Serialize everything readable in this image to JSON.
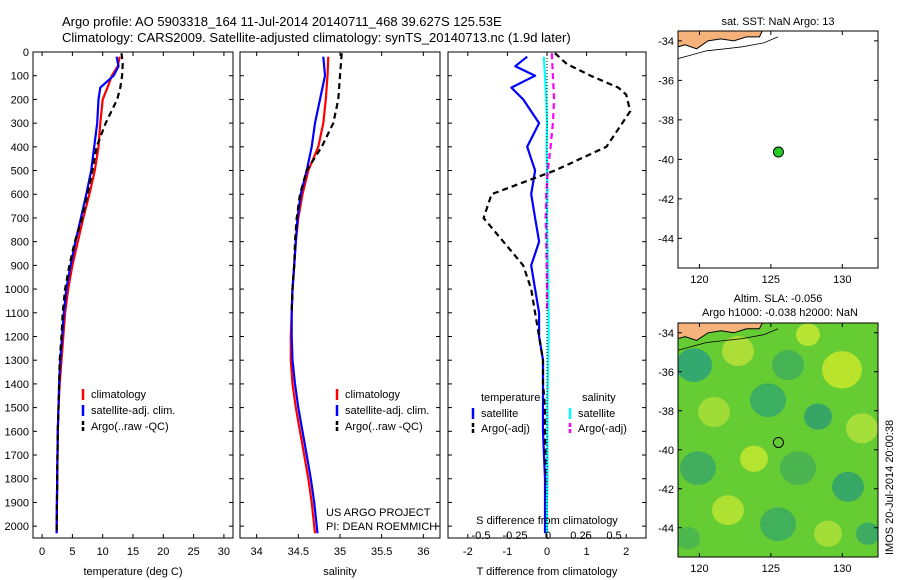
{
  "header": {
    "line1": "Argo profile: AO 5903318_164 11-Jul-2014 20140711_468 39.627S 125.53E",
    "line2": "Climatology: CARS2009. Satellite-adjusted climatology: synTS_20140713.nc (1.9d later)"
  },
  "side_label": "IMOS 20-Jul-2014 20:00:38",
  "colors": {
    "climatology": "#ff0000",
    "satellite": "#0000ff",
    "argo": "#000000",
    "sat_sal": "#00ffff",
    "argo_sal": "#ff00ff",
    "land": "#f5b27a",
    "float_dot": "#22cc22"
  },
  "chart_data": [
    {
      "type": "line",
      "xlabel": "temperature (deg C)",
      "xlim": [
        -1.5,
        31.5
      ],
      "xticks": [
        0,
        5,
        10,
        15,
        20,
        25,
        30
      ],
      "ylim": [
        2050,
        0
      ],
      "yticks": [
        0,
        100,
        200,
        300,
        400,
        500,
        600,
        700,
        800,
        900,
        1000,
        1100,
        1200,
        1300,
        1400,
        1500,
        1600,
        1700,
        1800,
        1900,
        2000
      ],
      "legend": [
        "climatology",
        "satellite-adj. clim.",
        "Argo(..raw -QC)"
      ],
      "series": [
        {
          "name": "climatology",
          "color": "#ff0000",
          "dash": "",
          "x": [
            12.8,
            12.5,
            11.5,
            10.8,
            10.0,
            9.6,
            9.3,
            8.7,
            7.8,
            6.8,
            5.9,
            5.0,
            4.3,
            3.8,
            3.5,
            3.2,
            2.9,
            2.7,
            2.6,
            2.5,
            2.4
          ],
          "y": [
            20,
            60,
            100,
            150,
            200,
            300,
            400,
            500,
            600,
            700,
            800,
            900,
            1000,
            1100,
            1200,
            1300,
            1400,
            1500,
            1600,
            1800,
            2030
          ]
        },
        {
          "name": "satellite-adj. clim.",
          "color": "#0000ff",
          "dash": "",
          "x": [
            12.3,
            12.6,
            11.8,
            9.6,
            9.3,
            9.1,
            8.6,
            8.1,
            7.3,
            6.4,
            5.5,
            4.7,
            4.0,
            3.6,
            3.3,
            3.0,
            2.8,
            2.7,
            2.6,
            2.5,
            2.4
          ],
          "y": [
            20,
            60,
            100,
            150,
            200,
            300,
            400,
            500,
            600,
            700,
            800,
            900,
            1000,
            1100,
            1200,
            1300,
            1400,
            1500,
            1600,
            1800,
            2030
          ]
        },
        {
          "name": "Argo(..raw -QC)",
          "color": "#000000",
          "dash": "6,4",
          "x": [
            13.1,
            13.3,
            13.2,
            12.9,
            12.4,
            10.5,
            9.0,
            8.3,
            7.5,
            6.6,
            5.4,
            4.5,
            3.8,
            3.4,
            3.2,
            2.9,
            2.8,
            2.7,
            2.6,
            2.5,
            2.4
          ],
          "y": [
            5,
            50,
            100,
            150,
            200,
            300,
            400,
            500,
            600,
            700,
            800,
            900,
            1000,
            1100,
            1200,
            1300,
            1400,
            1500,
            1600,
            1800,
            2030
          ]
        }
      ]
    },
    {
      "type": "line",
      "xlabel": "salinity",
      "xlim": [
        33.8,
        36.2
      ],
      "xticks": [
        34,
        34.5,
        35,
        35.5,
        36
      ],
      "ylim": [
        2050,
        0
      ],
      "legend": [
        "climatology",
        "satellite-adj. clim.",
        "Argo(..raw -QC)"
      ],
      "annotations": [
        "US ARGO PROJECT",
        "PI: DEAN ROEMMICH"
      ],
      "series": [
        {
          "name": "climatology",
          "color": "#ff0000",
          "dash": "",
          "x": [
            34.86,
            34.85,
            34.83,
            34.8,
            34.74,
            34.62,
            34.55,
            34.5,
            34.47,
            34.45,
            34.43,
            34.42,
            34.41,
            34.41,
            34.43,
            34.47,
            34.52,
            34.57,
            34.62,
            34.66,
            34.7
          ],
          "y": [
            20,
            100,
            200,
            300,
            400,
            500,
            600,
            700,
            800,
            900,
            1000,
            1100,
            1200,
            1300,
            1400,
            1500,
            1600,
            1700,
            1800,
            1900,
            2030
          ]
        },
        {
          "name": "satellite-adj. clim.",
          "color": "#0000ff",
          "dash": "",
          "x": [
            34.8,
            34.82,
            34.76,
            34.7,
            34.66,
            34.6,
            34.53,
            34.49,
            34.47,
            34.45,
            34.43,
            34.42,
            34.42,
            34.43,
            34.46,
            34.5,
            34.55,
            34.6,
            34.65,
            34.69,
            34.73
          ],
          "y": [
            20,
            100,
            200,
            300,
            400,
            500,
            600,
            700,
            800,
            900,
            1000,
            1100,
            1200,
            1300,
            1400,
            1500,
            1600,
            1700,
            1800,
            1900,
            2030
          ]
        },
        {
          "name": "Argo(..raw -QC)",
          "color": "#000000",
          "dash": "6,4",
          "x": [
            35.02,
            35.0,
            34.98,
            34.92,
            34.78,
            34.6,
            34.52,
            34.48,
            34.46,
            34.45,
            34.43,
            34.42
          ],
          "y": [
            5,
            100,
            200,
            300,
            400,
            500,
            600,
            700,
            800,
            900,
            1000,
            1100
          ]
        }
      ]
    },
    {
      "type": "line",
      "xlabel": "T difference from climatology",
      "xlim": [
        -2.5,
        2.5
      ],
      "xticks": [
        -2,
        -1,
        0,
        1,
        2
      ],
      "top_axis_label": "S difference from climatology",
      "top_axis_ticks": [
        "-0.5",
        "-0.25",
        "0",
        "0.25",
        "0.5"
      ],
      "ylim": [
        2050,
        0
      ],
      "legend_groups": [
        {
          "title": "temperature",
          "items": [
            "satellite",
            "Argo(-adj)"
          ]
        },
        {
          "title": "salinity",
          "items": [
            "satellite",
            "Argo(-adj)"
          ]
        }
      ],
      "series": [
        {
          "name": "temperature satellite",
          "color": "#0000ff",
          "dash": "",
          "x": [
            -0.5,
            -0.8,
            -0.3,
            -0.9,
            -0.6,
            -0.2,
            -0.5,
            -0.3,
            -0.4,
            -0.3,
            -0.2,
            -0.4,
            -0.3,
            -0.2,
            -0.2,
            -0.1,
            -0.1,
            -0.1,
            -0.1,
            -0.05,
            -0.05
          ],
          "y": [
            20,
            60,
            100,
            150,
            200,
            300,
            400,
            500,
            600,
            700,
            800,
            900,
            1000,
            1100,
            1200,
            1300,
            1400,
            1500,
            1600,
            1800,
            2030
          ]
        },
        {
          "name": "temperature Argo(-adj)",
          "color": "#000000",
          "dash": "6,4",
          "x": [
            0.2,
            0.5,
            1.1,
            1.8,
            2.0,
            2.1,
            1.5,
            0.2,
            -1.4,
            -1.6,
            -1.1,
            -0.6,
            -0.4,
            -0.3,
            -0.2,
            -0.1,
            -0.1,
            -0.05,
            -0.05,
            -0.02,
            0.0
          ],
          "y": [
            5,
            50,
            100,
            150,
            180,
            250,
            400,
            500,
            600,
            700,
            800,
            900,
            1000,
            1100,
            1200,
            1300,
            1400,
            1500,
            1600,
            1800,
            2030
          ]
        },
        {
          "name": "salinity satellite",
          "color": "#00ffff",
          "dash": "",
          "x": [
            -0.08,
            -0.05,
            -0.02,
            0.0,
            -0.01,
            0.0,
            0.01,
            0.0,
            0.01,
            0.02,
            0.03,
            0.04,
            0.04,
            0.03,
            0.02,
            0.01,
            0.01,
            0.01,
            0.01,
            0.0,
            0.0
          ],
          "y": [
            20,
            100,
            200,
            300,
            400,
            500,
            600,
            700,
            800,
            900,
            1000,
            1100,
            1200,
            1300,
            1400,
            1500,
            1600,
            1700,
            1800,
            1900,
            2030
          ]
        },
        {
          "name": "salinity Argo(-adj)",
          "color": "#ff00ff",
          "dash": "6,4",
          "x": [
            0.12,
            0.15,
            0.18,
            0.15,
            0.09,
            0.02,
            -0.02,
            -0.03,
            -0.02,
            -0.01,
            0.0,
            0.0
          ],
          "y": [
            5,
            100,
            200,
            300,
            400,
            500,
            600,
            700,
            800,
            900,
            1000,
            1100
          ]
        }
      ]
    },
    {
      "type": "scatter",
      "title": "sat. SST: NaN Argo: 13",
      "xlim": [
        118.5,
        132.5
      ],
      "ylim": [
        -45.5,
        -33.5
      ],
      "xticks": [
        120,
        125,
        130
      ],
      "yticks": [
        -34,
        -36,
        -38,
        -40,
        -42,
        -44
      ],
      "points": [
        {
          "x": 125.53,
          "y": -39.627
        }
      ]
    },
    {
      "type": "heatmap",
      "title_line1": "Altim. SLA: -0.056",
      "title_line2": "Argo h1000: -0.038 h2000: NaN",
      "xlim": [
        118.5,
        132.5
      ],
      "ylim": [
        -45.5,
        -33.5
      ],
      "xticks": [
        120,
        125,
        130
      ],
      "yticks": [
        -34,
        -36,
        -38,
        -40,
        -42,
        -44
      ],
      "points": [
        {
          "x": 125.53,
          "y": -39.627
        }
      ]
    }
  ]
}
